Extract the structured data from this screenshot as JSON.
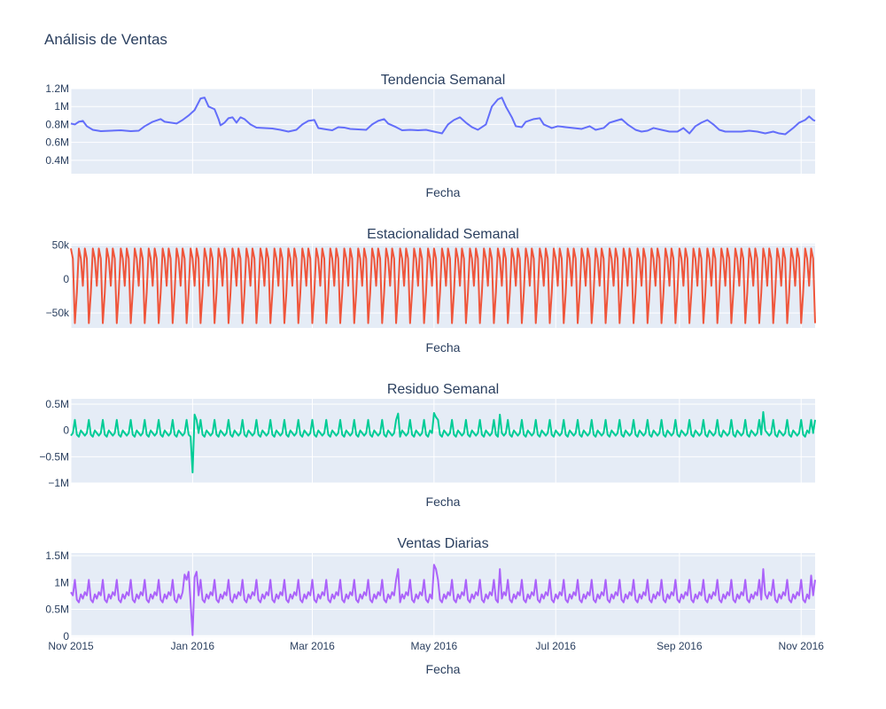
{
  "title": "Análisis de Ventas",
  "colors": {
    "plot_bg": "#e5ecf6",
    "grid": "#ffffff",
    "text": "#2a3f5f"
  },
  "x_axis": {
    "start": "2015-11-01",
    "end": "2016-11-08",
    "ticks": [
      {
        "date": "2015-11-01",
        "label": "Nov 2015"
      },
      {
        "date": "2016-01-01",
        "label": "Jan 2016"
      },
      {
        "date": "2016-03-01",
        "label": "Mar 2016"
      },
      {
        "date": "2016-05-01",
        "label": "May 2016"
      },
      {
        "date": "2016-07-01",
        "label": "Jul 2016"
      },
      {
        "date": "2016-09-01",
        "label": "Sep 2016"
      },
      {
        "date": "2016-11-01",
        "label": "Nov 2016"
      }
    ]
  },
  "chart_data": [
    {
      "type": "line",
      "title": "Tendencia Semanal",
      "xlabel": "Fecha",
      "ylabel": "",
      "color": "#636efa",
      "ylim": [
        250000,
        1200000
      ],
      "yticks": [
        {
          "v": 400000,
          "label": "0.4M"
        },
        {
          "v": 600000,
          "label": "0.6M"
        },
        {
          "v": 800000,
          "label": "0.8M"
        },
        {
          "v": 1000000,
          "label": "1M"
        },
        {
          "v": 1200000,
          "label": "1.2M"
        }
      ],
      "points": [
        [
          "2015-11-01",
          810000
        ],
        [
          "2015-11-03",
          800000
        ],
        [
          "2015-11-05",
          830000
        ],
        [
          "2015-11-07",
          840000
        ],
        [
          "2015-11-09",
          780000
        ],
        [
          "2015-11-12",
          740000
        ],
        [
          "2015-11-16",
          725000
        ],
        [
          "2015-11-21",
          730000
        ],
        [
          "2015-11-26",
          735000
        ],
        [
          "2015-12-01",
          725000
        ],
        [
          "2015-12-05",
          730000
        ],
        [
          "2015-12-08",
          780000
        ],
        [
          "2015-12-12",
          830000
        ],
        [
          "2015-12-16",
          860000
        ],
        [
          "2015-12-18",
          830000
        ],
        [
          "2015-12-21",
          820000
        ],
        [
          "2015-12-24",
          810000
        ],
        [
          "2015-12-27",
          850000
        ],
        [
          "2015-12-30",
          900000
        ],
        [
          "2016-01-02",
          960000
        ],
        [
          "2016-01-05",
          1090000
        ],
        [
          "2016-01-07",
          1100000
        ],
        [
          "2016-01-09",
          1000000
        ],
        [
          "2016-01-12",
          970000
        ],
        [
          "2016-01-14",
          860000
        ],
        [
          "2016-01-15",
          790000
        ],
        [
          "2016-01-17",
          820000
        ],
        [
          "2016-01-19",
          870000
        ],
        [
          "2016-01-21",
          880000
        ],
        [
          "2016-01-23",
          820000
        ],
        [
          "2016-01-25",
          880000
        ],
        [
          "2016-01-27",
          860000
        ],
        [
          "2016-01-30",
          800000
        ],
        [
          "2016-02-02",
          765000
        ],
        [
          "2016-02-06",
          760000
        ],
        [
          "2016-02-10",
          755000
        ],
        [
          "2016-02-14",
          740000
        ],
        [
          "2016-02-18",
          720000
        ],
        [
          "2016-02-22",
          740000
        ],
        [
          "2016-02-25",
          800000
        ],
        [
          "2016-02-28",
          840000
        ],
        [
          "2016-03-02",
          850000
        ],
        [
          "2016-03-04",
          760000
        ],
        [
          "2016-03-08",
          745000
        ],
        [
          "2016-03-11",
          735000
        ],
        [
          "2016-03-14",
          770000
        ],
        [
          "2016-03-17",
          765000
        ],
        [
          "2016-03-20",
          750000
        ],
        [
          "2016-03-24",
          745000
        ],
        [
          "2016-03-28",
          740000
        ],
        [
          "2016-03-31",
          800000
        ],
        [
          "2016-04-03",
          840000
        ],
        [
          "2016-04-06",
          860000
        ],
        [
          "2016-04-08",
          810000
        ],
        [
          "2016-04-12",
          770000
        ],
        [
          "2016-04-15",
          735000
        ],
        [
          "2016-04-19",
          740000
        ],
        [
          "2016-04-23",
          735000
        ],
        [
          "2016-04-27",
          740000
        ],
        [
          "2016-05-01",
          720000
        ],
        [
          "2016-05-05",
          700000
        ],
        [
          "2016-05-08",
          800000
        ],
        [
          "2016-05-11",
          850000
        ],
        [
          "2016-05-14",
          880000
        ],
        [
          "2016-05-17",
          820000
        ],
        [
          "2016-05-20",
          770000
        ],
        [
          "2016-05-23",
          740000
        ],
        [
          "2016-05-27",
          800000
        ],
        [
          "2016-05-30",
          1000000
        ],
        [
          "2016-06-02",
          1080000
        ],
        [
          "2016-06-04",
          1100000
        ],
        [
          "2016-06-06",
          1000000
        ],
        [
          "2016-06-09",
          880000
        ],
        [
          "2016-06-11",
          780000
        ],
        [
          "2016-06-14",
          770000
        ],
        [
          "2016-06-16",
          830000
        ],
        [
          "2016-06-20",
          860000
        ],
        [
          "2016-06-23",
          870000
        ],
        [
          "2016-06-25",
          800000
        ],
        [
          "2016-06-29",
          760000
        ],
        [
          "2016-07-02",
          780000
        ],
        [
          "2016-07-06",
          770000
        ],
        [
          "2016-07-10",
          760000
        ],
        [
          "2016-07-14",
          750000
        ],
        [
          "2016-07-18",
          780000
        ],
        [
          "2016-07-21",
          740000
        ],
        [
          "2016-07-25",
          760000
        ],
        [
          "2016-07-28",
          820000
        ],
        [
          "2016-07-31",
          840000
        ],
        [
          "2016-08-03",
          860000
        ],
        [
          "2016-08-06",
          800000
        ],
        [
          "2016-08-10",
          740000
        ],
        [
          "2016-08-13",
          720000
        ],
        [
          "2016-08-16",
          730000
        ],
        [
          "2016-08-19",
          760000
        ],
        [
          "2016-08-23",
          740000
        ],
        [
          "2016-08-27",
          720000
        ],
        [
          "2016-08-31",
          720000
        ],
        [
          "2016-09-03",
          760000
        ],
        [
          "2016-09-06",
          700000
        ],
        [
          "2016-09-09",
          780000
        ],
        [
          "2016-09-12",
          820000
        ],
        [
          "2016-09-15",
          850000
        ],
        [
          "2016-09-18",
          800000
        ],
        [
          "2016-09-21",
          740000
        ],
        [
          "2016-09-24",
          720000
        ],
        [
          "2016-09-28",
          720000
        ],
        [
          "2016-10-02",
          720000
        ],
        [
          "2016-10-06",
          730000
        ],
        [
          "2016-10-10",
          720000
        ],
        [
          "2016-10-14",
          700000
        ],
        [
          "2016-10-18",
          720000
        ],
        [
          "2016-10-21",
          700000
        ],
        [
          "2016-10-24",
          690000
        ],
        [
          "2016-10-28",
          760000
        ],
        [
          "2016-10-31",
          820000
        ],
        [
          "2016-11-03",
          850000
        ],
        [
          "2016-11-05",
          890000
        ],
        [
          "2016-11-06",
          870000
        ],
        [
          "2016-11-07",
          850000
        ],
        [
          "2016-11-08",
          840000
        ]
      ]
    },
    {
      "type": "line",
      "title": "Estacionalidad Semanal",
      "xlabel": "Fecha",
      "ylabel": "",
      "color": "#ef553b",
      "ylim": [
        -72000,
        52000
      ],
      "yticks": [
        {
          "v": -50000,
          "label": "−50k"
        },
        {
          "v": 0,
          "label": "0"
        },
        {
          "v": 50000,
          "label": "50k"
        }
      ],
      "period_days": 7,
      "weekly_pattern": [
        45000,
        30000,
        -65000,
        -20000,
        45000,
        30000,
        -10000
      ]
    },
    {
      "type": "line",
      "title": "Residuo Semanal",
      "xlabel": "Fecha",
      "ylabel": "",
      "color": "#00cc96",
      "ylim": [
        -1000000,
        600000
      ],
      "yticks": [
        {
          "v": -1000000,
          "label": "−1M"
        },
        {
          "v": -500000,
          "label": "−0.5M"
        },
        {
          "v": 0,
          "label": "0"
        },
        {
          "v": 500000,
          "label": "0.5M"
        }
      ],
      "period_days": 7,
      "weekly_pattern": [
        -100000,
        -50000,
        200000,
        -80000,
        -120000,
        0,
        -50000
      ],
      "events": [
        {
          "date": "2016-01-01",
          "value": -800000
        },
        {
          "date": "2016-01-02",
          "value": 300000
        },
        {
          "date": "2016-01-03",
          "value": 200000
        },
        {
          "date": "2016-04-13",
          "value": 320000
        },
        {
          "date": "2016-05-01",
          "value": 330000
        },
        {
          "date": "2016-05-02",
          "value": 250000
        },
        {
          "date": "2016-06-03",
          "value": 300000
        },
        {
          "date": "2016-10-13",
          "value": 350000
        },
        {
          "date": "2016-11-06",
          "value": 200000
        }
      ]
    },
    {
      "type": "line",
      "title": "Ventas Diarias",
      "xlabel": "Fecha",
      "ylabel": "",
      "color": "#ab63fa",
      "ylim": [
        -20000,
        1550000
      ],
      "yticks": [
        {
          "v": 0,
          "label": "0"
        },
        {
          "v": 500000,
          "label": "0.5M"
        },
        {
          "v": 1000000,
          "label": "1M"
        },
        {
          "v": 1500000,
          "label": "1.5M"
        }
      ],
      "period_days": 7,
      "weekly_pattern": [
        820000,
        760000,
        1050000,
        680000,
        630000,
        780000,
        700000
      ],
      "events": [
        {
          "date": "2015-12-28",
          "value": 1150000
        },
        {
          "date": "2015-12-30",
          "value": 1200000
        },
        {
          "date": "2016-01-01",
          "value": 20000
        },
        {
          "date": "2016-01-02",
          "value": 1100000
        },
        {
          "date": "2016-01-03",
          "value": 1200000
        },
        {
          "date": "2016-04-13",
          "value": 1250000
        },
        {
          "date": "2016-05-01",
          "value": 1330000
        },
        {
          "date": "2016-05-02",
          "value": 1250000
        },
        {
          "date": "2016-06-03",
          "value": 1250000
        },
        {
          "date": "2016-10-13",
          "value": 1250000
        },
        {
          "date": "2016-11-06",
          "value": 1130000
        }
      ]
    }
  ]
}
